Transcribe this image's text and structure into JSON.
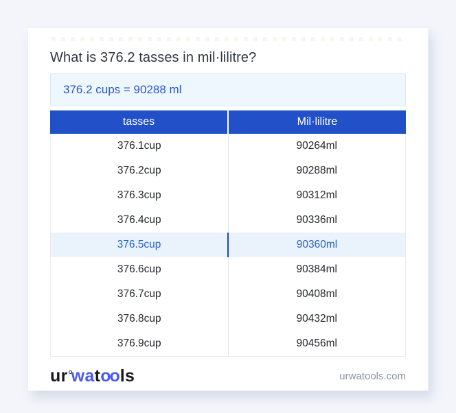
{
  "page": {
    "title": "What is 376.2 tasses in mil·lilitre?",
    "result": "376.2 cups = 90288 ml"
  },
  "table": {
    "headers": [
      "tasses",
      "Mil·lilitre"
    ],
    "highlighted_row_index": 4,
    "rows": [
      {
        "cup": "376.1cup",
        "ml": "90264ml"
      },
      {
        "cup": "376.2cup",
        "ml": "90288ml"
      },
      {
        "cup": "376.3cup",
        "ml": "90312ml"
      },
      {
        "cup": "376.4cup",
        "ml": "90336ml"
      },
      {
        "cup": "376.5cup",
        "ml": "90360ml"
      },
      {
        "cup": "376.6cup",
        "ml": "90384ml"
      },
      {
        "cup": "376.7cup",
        "ml": "90408ml"
      },
      {
        "cup": "376.8cup",
        "ml": "90432ml"
      },
      {
        "cup": "376.9cup",
        "ml": "90456ml"
      }
    ]
  },
  "footer": {
    "logo": {
      "part1": "ur",
      "part2": "wa",
      "part3": "t",
      "part4": "oo",
      "part5": "ls"
    },
    "domain": "urwatools.com"
  },
  "icons": {
    "logo_ring_icon": "small-circle-ring"
  },
  "colors": {
    "page_bg": "#f3f5fa",
    "header_blue": "#2150c8",
    "highlight_row_bg": "#eaf2fc",
    "highlight_text": "#2563d0",
    "result_box_bg": "#eef6fe",
    "result_text": "#2b58c8",
    "logo_blue": "#4a5af2"
  }
}
